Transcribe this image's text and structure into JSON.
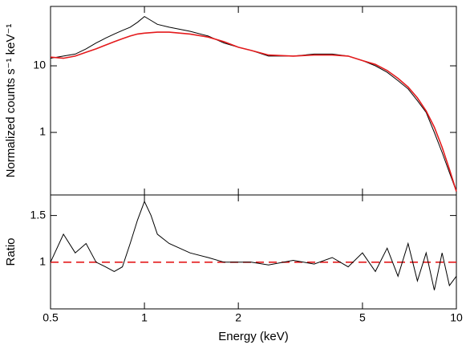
{
  "chart_data": [
    {
      "type": "line",
      "ylabel": "Normalized counts s⁻¹ keV⁻¹",
      "xlog": true,
      "ylog": true,
      "x": [
        0.5,
        0.55,
        0.6,
        0.65,
        0.7,
        0.75,
        0.8,
        0.85,
        0.9,
        0.95,
        1.0,
        1.05,
        1.1,
        1.2,
        1.4,
        1.6,
        1.8,
        2.0,
        2.2,
        2.5,
        3,
        3.5,
        4,
        4.5,
        5,
        5.5,
        6,
        6.5,
        7,
        7.5,
        8,
        8.5,
        9,
        9.5,
        10
      ],
      "series": [
        {
          "color": "#000000",
          "values": [
            13,
            14,
            15,
            18,
            22,
            26,
            30,
            34,
            38,
            45,
            55,
            48,
            42,
            38,
            33,
            28,
            22,
            19,
            17,
            14,
            14,
            15,
            15,
            14,
            12,
            10,
            8,
            6,
            4.5,
            3,
            2,
            1,
            0.5,
            0.25,
            0.13
          ]
        },
        {
          "color": "#e41a1c",
          "values": [
            13.5,
            13,
            14,
            16,
            18,
            20.5,
            23,
            25.5,
            28,
            30,
            31,
            31.5,
            32,
            32,
            30,
            27,
            23,
            19,
            17,
            14.5,
            14,
            14.5,
            14.5,
            14,
            12,
            10.5,
            8.5,
            6.5,
            4.8,
            3.3,
            2.1,
            1.2,
            0.6,
            0.28,
            0.13
          ]
        }
      ],
      "xlim": [
        0.5,
        10
      ],
      "xticks": [
        0.5,
        1,
        2,
        5,
        10
      ],
      "ylim": [
        0.115,
        78
      ],
      "yticks": [
        1,
        10
      ]
    },
    {
      "type": "line",
      "ylabel": "Ratio",
      "xlabel": "Energy (keV)",
      "xlog": true,
      "ylog": false,
      "x": [
        0.5,
        0.55,
        0.6,
        0.65,
        0.7,
        0.75,
        0.8,
        0.85,
        0.9,
        0.95,
        1.0,
        1.05,
        1.1,
        1.2,
        1.4,
        1.6,
        1.8,
        2.0,
        2.2,
        2.5,
        3,
        3.5,
        4,
        4.5,
        5,
        5.5,
        6,
        6.5,
        7,
        7.5,
        8,
        8.5,
        9,
        9.5,
        10
      ],
      "series": [
        {
          "color": "#000000",
          "values": [
            1.0,
            1.3,
            1.1,
            1.2,
            1.0,
            0.95,
            0.9,
            0.95,
            1.2,
            1.45,
            1.65,
            1.5,
            1.3,
            1.2,
            1.1,
            1.05,
            1.0,
            1.0,
            1.0,
            0.97,
            1.02,
            0.98,
            1.05,
            0.95,
            1.1,
            0.9,
            1.15,
            0.85,
            1.2,
            0.8,
            1.1,
            0.7,
            1.1,
            0.75,
            0.85
          ]
        }
      ],
      "reference_line": {
        "value": 1,
        "color": "#e41a1c"
      },
      "xlim": [
        0.5,
        10
      ],
      "xticks": [
        0.5,
        1,
        2,
        5,
        10
      ],
      "ylim": [
        0.5,
        1.72
      ],
      "yticks": [
        1,
        1.5
      ]
    }
  ]
}
